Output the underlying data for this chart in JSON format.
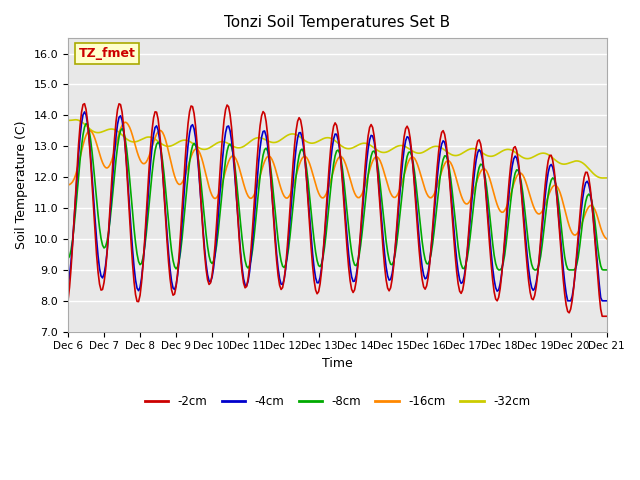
{
  "title": "Tonzi Soil Temperatures Set B",
  "xlabel": "Time",
  "ylabel": "Soil Temperature (C)",
  "ylim": [
    7.0,
    16.5
  ],
  "yticks": [
    7.0,
    8.0,
    9.0,
    10.0,
    11.0,
    12.0,
    13.0,
    14.0,
    15.0,
    16.0
  ],
  "annotation": "TZ_fmet",
  "annotation_box_color": "#ffffcc",
  "annotation_text_color": "#cc0000",
  "plot_bg_color": "#e8e8e8",
  "colors": {
    "-2cm": "#cc0000",
    "-4cm": "#0000cc",
    "-8cm": "#00aa00",
    "-16cm": "#ff8800",
    "-32cm": "#cccc00"
  },
  "x_labels": [
    "Dec 6",
    "Dec 7",
    "Dec 8",
    "Dec 9",
    "Dec 10",
    "Dec 11",
    "Dec 12",
    "Dec 13",
    "Dec 14",
    "Dec 15",
    "Dec 16",
    "Dec 17",
    "Dec 18",
    "Dec 19",
    "Dec 20",
    "Dec 21"
  ],
  "legend_labels": [
    "-2cm",
    "-4cm",
    "-8cm",
    "-16cm",
    "-32cm"
  ]
}
